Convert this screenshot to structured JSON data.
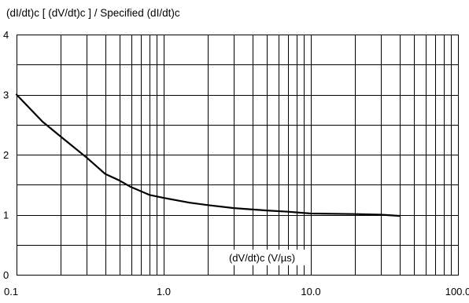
{
  "chart_data": {
    "type": "line",
    "title": "(dI/dt)c [ (dV/dt)c ] / Specified (dI/dt)c",
    "xlabel": "(dV/dt)c (V/µs)",
    "ylabel": "",
    "xscale": "log",
    "xlim": [
      0.1,
      100
    ],
    "ylim": [
      0,
      4
    ],
    "grid": true,
    "x_tick_labels": [
      "0.1",
      "1.0",
      "10.0",
      "100.0"
    ],
    "x_tick_values": [
      0.1,
      1,
      10,
      100
    ],
    "y_tick_labels": [
      "0",
      "1",
      "2",
      "3",
      "4"
    ],
    "y_tick_values": [
      0,
      1,
      2,
      3,
      4
    ],
    "series": [
      {
        "x": [
          0.1,
          0.15,
          0.2,
          0.3,
          0.4,
          0.5,
          0.6,
          0.8,
          1.0,
          1.5,
          2.0,
          3.0,
          5.0,
          7.0,
          10.0,
          20.0,
          30.0,
          40.0
        ],
        "y": [
          3.0,
          2.55,
          2.3,
          1.95,
          1.68,
          1.57,
          1.46,
          1.33,
          1.28,
          1.2,
          1.16,
          1.11,
          1.07,
          1.05,
          1.02,
          1.01,
          1.0,
          0.98
        ]
      }
    ]
  }
}
